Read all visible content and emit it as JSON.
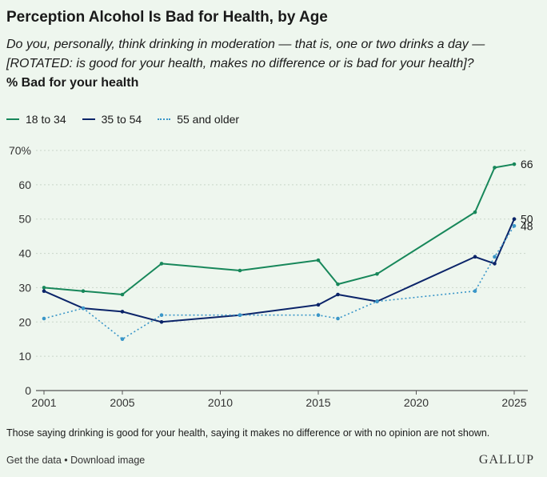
{
  "header": {
    "title": "Perception Alcohol Is Bad for Health, by Age",
    "question": "Do you, personally, think drinking in moderation — that is, one or two drinks a day — [ROTATED: is good for your health, makes no difference or is bad for your health]?",
    "metric": "% Bad for your health"
  },
  "legend": [
    {
      "label": "18 to 34",
      "color": "#17875a",
      "style": "solid"
    },
    {
      "label": "35 to 54",
      "color": "#0b2469",
      "style": "solid"
    },
    {
      "label": "55 and older",
      "color": "#3a96c8",
      "style": "dotted"
    }
  ],
  "chart_data": {
    "type": "line",
    "title": "Perception Alcohol Is Bad for Health, by Age",
    "xlabel": "",
    "ylabel": "",
    "xlim": [
      2001,
      2025
    ],
    "ylim": [
      0,
      70
    ],
    "x_ticks": [
      2001,
      2005,
      2010,
      2015,
      2020,
      2025
    ],
    "y_ticks": [
      0,
      10,
      20,
      30,
      40,
      50,
      60,
      70
    ],
    "y_tick_labels": [
      "0",
      "10",
      "20",
      "30",
      "40",
      "50",
      "60",
      "70%"
    ],
    "grid": "horizontal",
    "legend_position": "top-left",
    "series": [
      {
        "name": "18 to 34",
        "color": "#17875a",
        "style": "solid",
        "end_label": "66",
        "points": [
          [
            2001,
            30
          ],
          [
            2003,
            29
          ],
          [
            2005,
            28
          ],
          [
            2007,
            37
          ],
          [
            2011,
            35
          ],
          [
            2015,
            38
          ],
          [
            2016,
            31
          ],
          [
            2018,
            34
          ],
          [
            2023,
            52
          ],
          [
            2024,
            65
          ],
          [
            2025,
            66
          ]
        ]
      },
      {
        "name": "35 to 54",
        "color": "#0b2469",
        "style": "solid",
        "end_label": "50",
        "points": [
          [
            2001,
            29
          ],
          [
            2003,
            24
          ],
          [
            2005,
            23
          ],
          [
            2007,
            20
          ],
          [
            2011,
            22
          ],
          [
            2015,
            25
          ],
          [
            2016,
            28
          ],
          [
            2018,
            26
          ],
          [
            2023,
            39
          ],
          [
            2024,
            37
          ],
          [
            2025,
            50
          ]
        ]
      },
      {
        "name": "55 and older",
        "color": "#3a96c8",
        "style": "dotted",
        "end_label": "48",
        "points": [
          [
            2001,
            21
          ],
          [
            2003,
            24
          ],
          [
            2005,
            15
          ],
          [
            2007,
            22
          ],
          [
            2011,
            22
          ],
          [
            2015,
            22
          ],
          [
            2016,
            21
          ],
          [
            2018,
            26
          ],
          [
            2023,
            29
          ],
          [
            2024,
            39
          ],
          [
            2025,
            48
          ]
        ]
      }
    ]
  },
  "footnote": "Those saying drinking is good for your health, saying it makes no difference or with no opinion are not shown.",
  "footer": {
    "get_data": "Get the data",
    "separator": " • ",
    "download": "Download image",
    "brand": "GALLUP"
  }
}
